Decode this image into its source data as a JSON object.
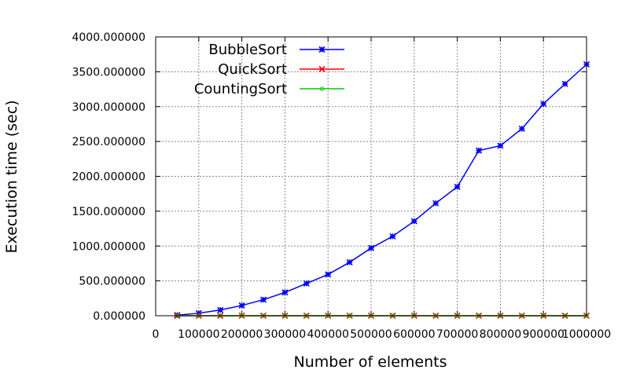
{
  "chart_data": {
    "type": "line",
    "xlabel": "Number of elements",
    "ylabel": "Execution time (sec)",
    "xlim": [
      0,
      1000000
    ],
    "ylim": [
      0,
      4000
    ],
    "x_ticks": [
      0,
      100000,
      200000,
      300000,
      400000,
      500000,
      600000,
      700000,
      800000,
      900000,
      1000000
    ],
    "x_tick_labels": [
      "0",
      "100000",
      "200000",
      "300000",
      "400000",
      "500000",
      "600000",
      "700000",
      "800000",
      "900000",
      "1000000"
    ],
    "y_ticks": [
      0,
      500,
      1000,
      1500,
      2000,
      2500,
      3000,
      3500,
      4000
    ],
    "y_tick_labels": [
      "0.000000",
      "500.000000",
      "1000.000000",
      "1500.000000",
      "2000.000000",
      "2500.000000",
      "3000.000000",
      "3500.000000",
      "4000.000000"
    ],
    "grid": true,
    "legend_position": "top-left",
    "x": [
      50000,
      100000,
      150000,
      200000,
      250000,
      300000,
      350000,
      400000,
      450000,
      500000,
      550000,
      600000,
      650000,
      700000,
      750000,
      800000,
      850000,
      900000,
      950000,
      1000000
    ],
    "series": [
      {
        "name": "BubbleSort",
        "color": "#0000ff",
        "marker": "asterisk",
        "values": [
          9,
          36,
          83,
          147,
          230,
          334,
          463,
          592,
          767,
          971,
          1139,
          1357,
          1614,
          1849,
          2370,
          2439,
          2683,
          3040,
          3326,
          3607
        ]
      },
      {
        "name": "QuickSort",
        "color": "#ff0000",
        "marker": "cross",
        "values": [
          0.01,
          0.02,
          0.03,
          0.04,
          0.05,
          0.06,
          0.07,
          0.08,
          0.09,
          0.1,
          0.11,
          0.12,
          0.13,
          0.14,
          0.15,
          0.16,
          0.17,
          0.18,
          0.19,
          0.2
        ]
      },
      {
        "name": "CountingSort",
        "color": "#00cc00",
        "marker": "circle",
        "values": [
          0.001,
          0.002,
          0.003,
          0.004,
          0.005,
          0.006,
          0.007,
          0.008,
          0.009,
          0.01,
          0.011,
          0.012,
          0.013,
          0.014,
          0.015,
          0.016,
          0.017,
          0.018,
          0.019,
          0.02
        ]
      }
    ]
  }
}
